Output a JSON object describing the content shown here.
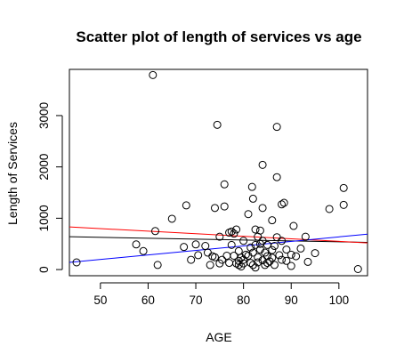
{
  "chart_data": {
    "type": "scatter",
    "title": "Scatter plot of length of services vs age",
    "xlabel": "AGE",
    "ylabel": "Length of Services",
    "xlim": [
      43.5,
      106
    ],
    "ylim": [
      -120,
      3900
    ],
    "xticks": [
      "50",
      "60",
      "70",
      "80",
      "90",
      "100"
    ],
    "yticks": [
      "0",
      "1000",
      "2000",
      "3000"
    ],
    "grid": false,
    "legend": "none",
    "series": [
      {
        "marker": "open-circle",
        "color": "#000000",
        "points": [
          [
            45,
            140
          ],
          [
            57.5,
            490
          ],
          [
            59,
            360
          ],
          [
            61,
            3790
          ],
          [
            61.5,
            750
          ],
          [
            62,
            90
          ],
          [
            65,
            990
          ],
          [
            67.5,
            440
          ],
          [
            68,
            1250
          ],
          [
            69,
            190
          ],
          [
            70,
            490
          ],
          [
            70.5,
            280
          ],
          [
            72,
            460
          ],
          [
            72.5,
            330
          ],
          [
            73,
            90
          ],
          [
            73.5,
            260
          ],
          [
            74,
            1200
          ],
          [
            74,
            240
          ],
          [
            74.5,
            2820
          ],
          [
            75,
            640
          ],
          [
            75.5,
            190
          ],
          [
            75,
            120
          ],
          [
            76,
            1660
          ],
          [
            76,
            1230
          ],
          [
            76.5,
            270
          ],
          [
            77,
            720
          ],
          [
            77,
            130
          ],
          [
            77.5,
            480
          ],
          [
            77.5,
            740
          ],
          [
            78,
            700
          ],
          [
            78,
            270
          ],
          [
            78.5,
            780
          ],
          [
            78.5,
            120
          ],
          [
            79,
            170
          ],
          [
            79,
            90
          ],
          [
            79,
            360
          ],
          [
            79.5,
            230
          ],
          [
            79.5,
            60
          ],
          [
            80,
            190
          ],
          [
            80,
            560
          ],
          [
            80,
            120
          ],
          [
            80.5,
            290
          ],
          [
            81,
            1080
          ],
          [
            81,
            270
          ],
          [
            81.5,
            130
          ],
          [
            81.5,
            430
          ],
          [
            81.8,
            1610
          ],
          [
            82,
            1380
          ],
          [
            82,
            330
          ],
          [
            82,
            90
          ],
          [
            82.5,
            780
          ],
          [
            82.5,
            480
          ],
          [
            82.5,
            40
          ],
          [
            83,
            640
          ],
          [
            83,
            240
          ],
          [
            83,
            140
          ],
          [
            83.5,
            760
          ],
          [
            83.5,
            390
          ],
          [
            83.5,
            500
          ],
          [
            84,
            2040
          ],
          [
            84,
            1200
          ],
          [
            84,
            560
          ],
          [
            84,
            180
          ],
          [
            84.5,
            330
          ],
          [
            84.5,
            90
          ],
          [
            85,
            480
          ],
          [
            85,
            260
          ],
          [
            85,
            130
          ],
          [
            85.5,
            160
          ],
          [
            86,
            960
          ],
          [
            86,
            380
          ],
          [
            86,
            230
          ],
          [
            86.5,
            460
          ],
          [
            86.5,
            90
          ],
          [
            87,
            2780
          ],
          [
            87,
            1800
          ],
          [
            87,
            630
          ],
          [
            87.5,
            280
          ],
          [
            88,
            1270
          ],
          [
            88,
            560
          ],
          [
            88,
            190
          ],
          [
            88.5,
            1300
          ],
          [
            89,
            390
          ],
          [
            89,
            170
          ],
          [
            90,
            290
          ],
          [
            90,
            70
          ],
          [
            90.5,
            850
          ],
          [
            91,
            260
          ],
          [
            92,
            410
          ],
          [
            93,
            640
          ],
          [
            93.5,
            150
          ],
          [
            95,
            320
          ],
          [
            98,
            1180
          ],
          [
            101,
            1590
          ],
          [
            101,
            1260
          ],
          [
            104,
            10
          ]
        ]
      }
    ],
    "lines": [
      {
        "color": "#000000",
        "x": [
          43.5,
          106
        ],
        "y": [
          640,
          530
        ]
      },
      {
        "color": "#ff0000",
        "x": [
          43.5,
          106
        ],
        "y": [
          830,
          520
        ]
      },
      {
        "color": "#0000ff",
        "x": [
          43.5,
          106
        ],
        "y": [
          140,
          690
        ]
      }
    ]
  }
}
